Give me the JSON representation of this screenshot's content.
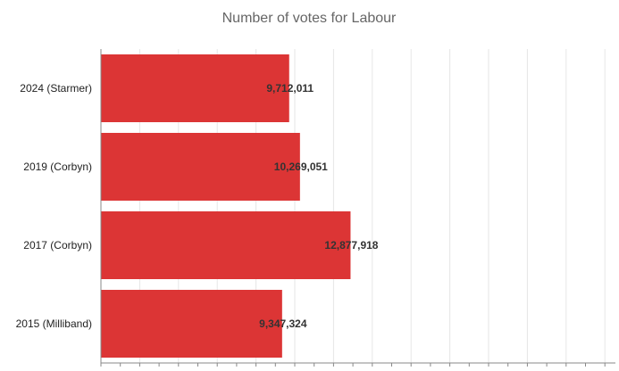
{
  "chart_data": {
    "type": "bar",
    "orientation": "horizontal",
    "title": "Number of votes for Labour",
    "categories": [
      "2024 (Starmer)",
      "2019 (Corbyn)",
      "2017 (Corbyn)",
      "2015 (Milliband)"
    ],
    "values": [
      9712011,
      10269051,
      12877918,
      9347324
    ],
    "value_labels": [
      "9,712,011",
      "10,269,051",
      "12,877,918",
      "9,347,324"
    ],
    "xlim": [
      0,
      20000000
    ],
    "grid": true,
    "bar_color": "#dc3535"
  }
}
